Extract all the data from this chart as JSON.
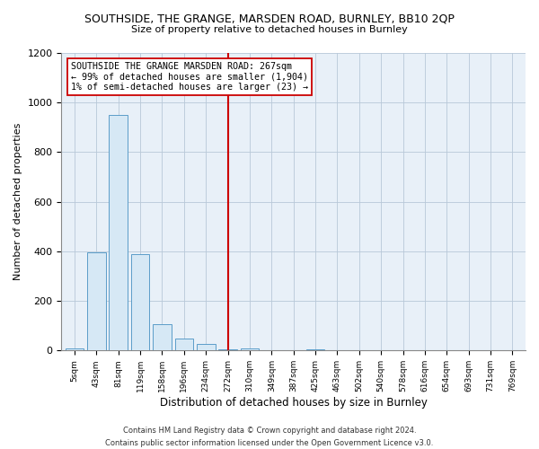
{
  "title_line1": "SOUTHSIDE, THE GRANGE, MARSDEN ROAD, BURNLEY, BB10 2QP",
  "title_line2": "Size of property relative to detached houses in Burnley",
  "xlabel": "Distribution of detached houses by size in Burnley",
  "ylabel": "Number of detached properties",
  "bar_labels": [
    "5sqm",
    "43sqm",
    "81sqm",
    "119sqm",
    "158sqm",
    "196sqm",
    "234sqm",
    "272sqm",
    "310sqm",
    "349sqm",
    "387sqm",
    "425sqm",
    "463sqm",
    "502sqm",
    "540sqm",
    "578sqm",
    "616sqm",
    "654sqm",
    "693sqm",
    "731sqm",
    "769sqm"
  ],
  "bar_values": [
    10,
    395,
    950,
    390,
    108,
    50,
    25,
    5,
    8,
    0,
    0,
    5,
    0,
    0,
    0,
    0,
    0,
    0,
    0,
    0,
    0
  ],
  "bar_color": "#d6e8f5",
  "bar_edge_color": "#5b9dc9",
  "vline_x": 7,
  "vline_color": "#cc0000",
  "ylim": [
    0,
    1200
  ],
  "yticks": [
    0,
    200,
    400,
    600,
    800,
    1000,
    1200
  ],
  "annotation_title": "SOUTHSIDE THE GRANGE MARSDEN ROAD: 267sqm",
  "annotation_line2": "← 99% of detached houses are smaller (1,904)",
  "annotation_line3": "1% of semi-detached houses are larger (23) →",
  "footer_line1": "Contains HM Land Registry data © Crown copyright and database right 2024.",
  "footer_line2": "Contains public sector information licensed under the Open Government Licence v3.0.",
  "bg_color": "#ffffff",
  "plot_bg_color": "#e8f0f8",
  "grid_color": "#b8c8d8"
}
